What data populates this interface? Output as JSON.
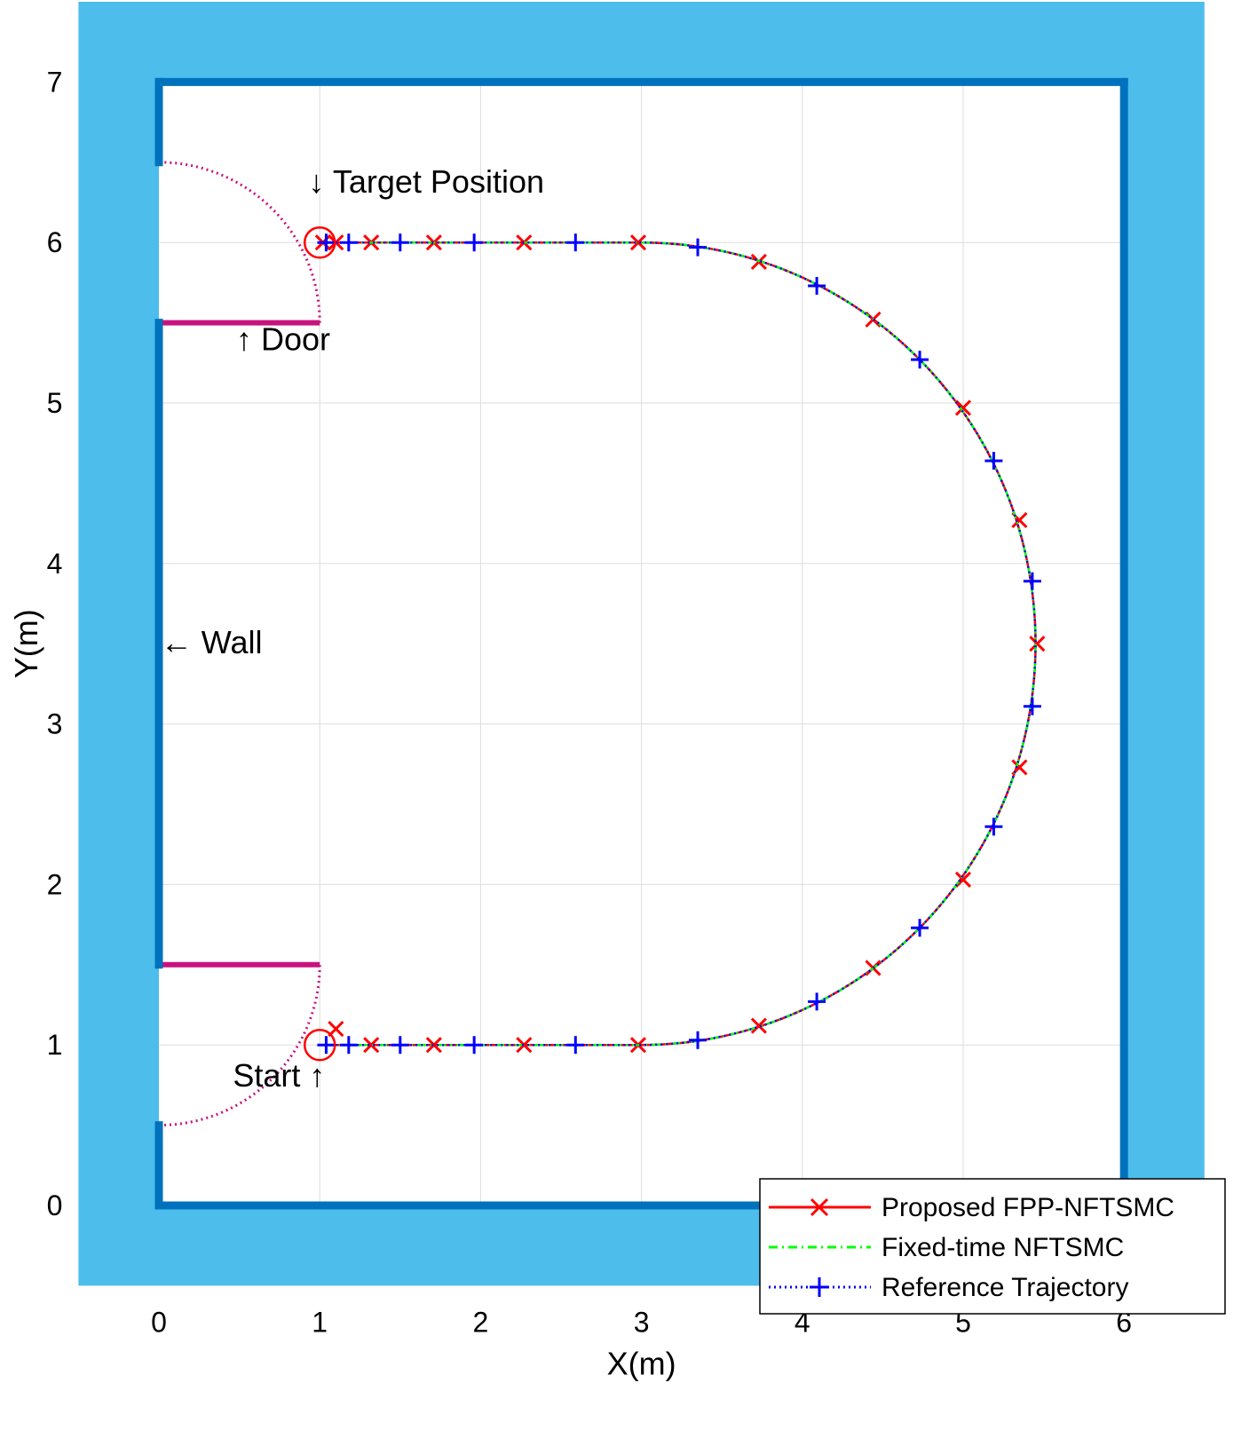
{
  "chart_data": {
    "type": "line",
    "xlabel": "X(m)",
    "ylabel": "Y(m)",
    "xlim": [
      -0.5,
      6.5
    ],
    "ylim": [
      -0.5,
      7.5
    ],
    "xticks": [
      "0",
      "1",
      "2",
      "3",
      "4",
      "5",
      "6"
    ],
    "yticks": [
      "0",
      "1",
      "2",
      "3",
      "4",
      "5",
      "6",
      "7"
    ],
    "grid": true,
    "legend_position": "bottom-right",
    "background_color": "#4dbdec",
    "room_color": "#ffffff",
    "wall_color": "#0072bd",
    "door_color": "#c8127e",
    "annotations": {
      "target": "↓ Target Position",
      "door": "↑ Door",
      "wall": "← Wall",
      "start": "Start ↑"
    },
    "walls": [
      {
        "x": [
          0,
          0
        ],
        "y": [
          6.5,
          7
        ]
      },
      {
        "x": [
          0,
          6
        ],
        "y": [
          7,
          7
        ]
      },
      {
        "x": [
          6,
          6
        ],
        "y": [
          7,
          0
        ]
      },
      {
        "x": [
          6,
          0
        ],
        "y": [
          0,
          0
        ]
      },
      {
        "x": [
          0,
          0
        ],
        "y": [
          0,
          0.5
        ]
      },
      {
        "x": [
          0,
          0
        ],
        "y": [
          1.5,
          5.5
        ]
      }
    ],
    "doors": [
      {
        "leaf": {
          "x": [
            0,
            1
          ],
          "y": [
            5.5,
            5.5
          ]
        },
        "swing_center": [
          0,
          5.5
        ],
        "swing_radius": 1,
        "swing_angles_deg": [
          0,
          90
        ]
      },
      {
        "leaf": {
          "x": [
            0,
            1
          ],
          "y": [
            1.5,
            1.5
          ]
        },
        "swing_center": [
          0,
          1.5
        ],
        "swing_radius": 1,
        "swing_angles_deg": [
          -90,
          0
        ]
      }
    ],
    "path": {
      "straight_y": [
        1,
        6
      ],
      "straight_x": [
        1,
        3
      ],
      "ellipse_center": [
        3,
        3.5
      ],
      "ellipse_radii": [
        2.45,
        2.5
      ]
    },
    "start_point": [
      1,
      1
    ],
    "target_point": [
      1,
      6
    ],
    "series": [
      {
        "name": "Proposed FPP-NFTSMC",
        "color": "#ff0000",
        "line": "solid",
        "marker": "x",
        "markers": [
          [
            1.1,
            1.1
          ],
          [
            1.32,
            1
          ],
          [
            1.71,
            1
          ],
          [
            2.27,
            1
          ],
          [
            2.98,
            1
          ],
          [
            3.73,
            1.12
          ],
          [
            4.44,
            1.48
          ],
          [
            5,
            2.03
          ],
          [
            5.35,
            2.73
          ],
          [
            5.46,
            3.5
          ],
          [
            5.35,
            4.27
          ],
          [
            5,
            4.97
          ],
          [
            4.44,
            5.52
          ],
          [
            3.73,
            5.88
          ],
          [
            2.98,
            6
          ],
          [
            2.27,
            6
          ],
          [
            1.71,
            6
          ],
          [
            1.32,
            6
          ],
          [
            1.1,
            6
          ],
          [
            1.02,
            6
          ]
        ]
      },
      {
        "name": "Fixed-time NFTSMC",
        "color": "#00ff00",
        "line": "dashdot"
      },
      {
        "name": "Reference Trajectory",
        "color": "#0000ff",
        "line": "dotted",
        "marker": "+",
        "markers": [
          [
            1.04,
            1
          ],
          [
            1.18,
            1
          ],
          [
            1.5,
            1
          ],
          [
            1.96,
            1
          ],
          [
            2.59,
            1
          ],
          [
            3.35,
            1.03
          ],
          [
            4.09,
            1.27
          ],
          [
            4.73,
            1.73
          ],
          [
            5.19,
            2.36
          ],
          [
            5.43,
            3.11
          ],
          [
            5.43,
            3.89
          ],
          [
            5.19,
            4.64
          ],
          [
            4.73,
            5.27
          ],
          [
            4.09,
            5.73
          ],
          [
            3.35,
            5.97
          ],
          [
            2.59,
            6
          ],
          [
            1.96,
            6
          ],
          [
            1.5,
            6
          ],
          [
            1.18,
            6
          ],
          [
            1.04,
            6
          ]
        ]
      }
    ]
  }
}
